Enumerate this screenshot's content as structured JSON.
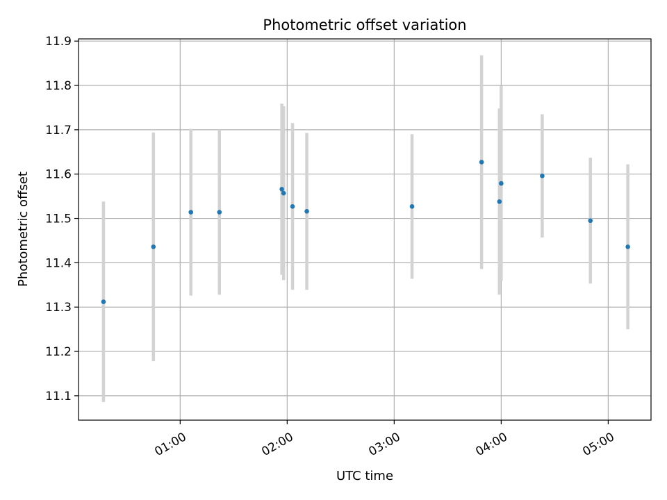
{
  "chart_data": {
    "type": "scatter",
    "title": "Photometric offset variation",
    "xlabel": "UTC time",
    "ylabel": "Photometric offset",
    "x_unit": "minutes_after_midnight",
    "xlim": [
      "00:03",
      "05:24"
    ],
    "ylim": [
      11.045,
      11.905
    ],
    "grid": true,
    "x_ticks": [
      "01:00",
      "02:00",
      "03:00",
      "04:00",
      "05:00"
    ],
    "y_ticks": [
      "11.1",
      "11.2",
      "11.3",
      "11.4",
      "11.5",
      "11.6",
      "11.7",
      "11.8",
      "11.9"
    ],
    "point_color": "#1f77b4",
    "errorbar_color": "#d3d3d3",
    "points": [
      {
        "x": "00:17",
        "y": 11.312,
        "err": 0.226
      },
      {
        "x": "00:45",
        "y": 11.436,
        "err": 0.258
      },
      {
        "x": "01:06",
        "y": 11.514,
        "err": 0.188
      },
      {
        "x": "01:22",
        "y": 11.514,
        "err": 0.186
      },
      {
        "x": "01:57",
        "y": 11.566,
        "err": 0.193
      },
      {
        "x": "01:58",
        "y": 11.557,
        "err": 0.196
      },
      {
        "x": "02:03",
        "y": 11.527,
        "err": 0.188
      },
      {
        "x": "02:11",
        "y": 11.516,
        "err": 0.177
      },
      {
        "x": "03:10",
        "y": 11.527,
        "err": 0.163
      },
      {
        "x": "03:49",
        "y": 11.627,
        "err": 0.241
      },
      {
        "x": "03:59",
        "y": 11.538,
        "err": 0.21
      },
      {
        "x": "04:00",
        "y": 11.579,
        "err": 0.22
      },
      {
        "x": "04:23",
        "y": 11.596,
        "err": 0.139
      },
      {
        "x": "04:50",
        "y": 11.495,
        "err": 0.142
      },
      {
        "x": "05:11",
        "y": 11.436,
        "err": 0.186
      }
    ]
  }
}
